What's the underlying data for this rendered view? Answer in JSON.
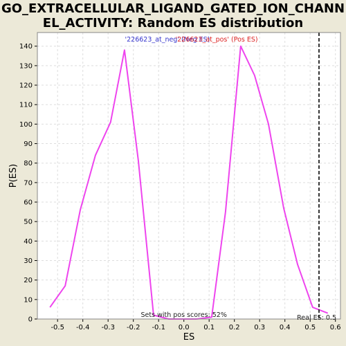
{
  "title_lines": [
    "GO_EXTRACELLULAR_LIGAND_GATED_ION_CHANN",
    "EL_ACTIVITY: Random ES distribution"
  ],
  "colors": {
    "background": "#ece9d8",
    "plot_bg": "#ffffff",
    "curve": "#ee44ee",
    "neg_legend": "#3333cc",
    "pos_legend": "#dd2222",
    "real_es_line": "#333333",
    "grid": "#dddddd"
  },
  "chart_data": {
    "type": "line",
    "title": "GO_EXTRACELLULAR_LIGAND_GATED_ION_CHANNEL_ACTIVITY: Random ES distribution",
    "xlabel": "ES",
    "ylabel": "P(ES)",
    "xlim": [
      -0.58,
      0.62
    ],
    "ylim": [
      0,
      147
    ],
    "xticks": [
      -0.5,
      -0.4,
      -0.3,
      -0.2,
      -0.1,
      0.0,
      0.1,
      0.2,
      0.3,
      0.4,
      0.5,
      0.6
    ],
    "xtick_labels": [
      "-0.5",
      "-0.4",
      "-0.3",
      "-0.2",
      "-0.1",
      "0.0",
      "0.1",
      "0.2",
      "0.3",
      "0.4",
      "0.5",
      "0.6"
    ],
    "yticks": [
      0,
      10,
      20,
      30,
      40,
      50,
      60,
      70,
      80,
      90,
      100,
      110,
      120,
      130,
      140
    ],
    "ytick_labels": [
      "0",
      "10",
      "20",
      "30",
      "40",
      "50",
      "60",
      "70",
      "80",
      "90",
      "100",
      "110",
      "120",
      "130",
      "140"
    ],
    "grid": true,
    "series": [
      {
        "name": "'226623_at_neg' (Neg ES)",
        "x": [
          -0.53,
          -0.47,
          -0.41,
          -0.35,
          -0.29,
          -0.235,
          -0.18,
          -0.12,
          -0.06,
          0.0
        ],
        "values": [
          6,
          17,
          56,
          84,
          101,
          138,
          81,
          2,
          0,
          0
        ]
      },
      {
        "name": "'226623_at_pos' (Pos ES)",
        "x": [
          0.0,
          0.05,
          0.11,
          0.165,
          0.225,
          0.28,
          0.335,
          0.395,
          0.45,
          0.51,
          0.57
        ],
        "values": [
          0,
          0,
          1,
          55,
          140,
          125,
          100,
          57,
          28,
          6,
          3
        ]
      }
    ],
    "real_es": 0.535,
    "annotations": {
      "sets_with_pos": "Sets with pos scores: 52%",
      "real_es_label": "Real ES: 0.5"
    }
  }
}
